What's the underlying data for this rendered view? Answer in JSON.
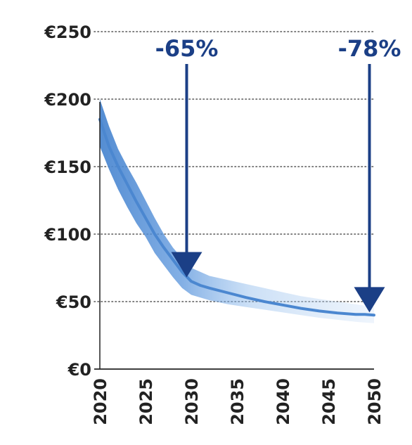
{
  "chart_data": {
    "type": "line",
    "title": "",
    "xlabel": "",
    "ylabel": "",
    "xlim": [
      2020,
      2050
    ],
    "ylim": [
      0,
      250
    ],
    "y_ticks": [
      "€0",
      "€50",
      "€100",
      "€150",
      "€200",
      "€250"
    ],
    "y_tick_values": [
      0,
      50,
      100,
      150,
      200,
      250
    ],
    "x_ticks": [
      "2020",
      "2025",
      "2030",
      "2035",
      "2040",
      "2045",
      "2050"
    ],
    "x_tick_values": [
      2020,
      2025,
      2030,
      2035,
      2040,
      2045,
      2050
    ],
    "grid": "horizontal-dotted",
    "series": [
      {
        "x": [
          2020,
          2021,
          2022,
          2023,
          2024,
          2025,
          2026,
          2027,
          2028,
          2029,
          2030,
          2031,
          2032,
          2034,
          2036,
          2038,
          2040,
          2042,
          2044,
          2046,
          2048,
          2049,
          2050
        ],
        "values": [
          185,
          165,
          150,
          137,
          124,
          112,
          100,
          90,
          81,
          72,
          65,
          62,
          60,
          56.5,
          53,
          50,
          47.5,
          45,
          43,
          41.5,
          40.5,
          40.5,
          40
        ]
      }
    ],
    "band": {
      "x": [
        2020,
        2021,
        2022,
        2023,
        2024,
        2025,
        2026,
        2027,
        2028,
        2029,
        2030,
        2032,
        2034,
        2036,
        2038,
        2040,
        2042,
        2044,
        2046,
        2048,
        2050
      ],
      "upper": [
        200,
        180,
        163,
        150,
        138,
        125,
        112,
        100,
        90,
        82,
        75,
        69,
        66,
        63,
        60,
        57,
        54,
        52,
        50,
        48,
        46
      ],
      "lower": [
        165,
        148,
        133,
        120,
        108,
        98,
        86,
        77,
        68,
        60,
        55,
        51,
        48,
        46,
        44,
        42,
        40,
        38,
        36.5,
        35,
        34
      ]
    },
    "annotations": [
      {
        "label": "-65%",
        "x": 2029.5,
        "arrow_from": 225,
        "arrow_to": 68
      },
      {
        "label": "-78%",
        "x": 2049.5,
        "arrow_from": 225,
        "arrow_to": 42
      }
    ],
    "colors": {
      "line": "#4b87d0",
      "band": "#6fa6e3",
      "arrow": "#1b3f86",
      "axis": "#222222",
      "grid": "#555555"
    }
  }
}
